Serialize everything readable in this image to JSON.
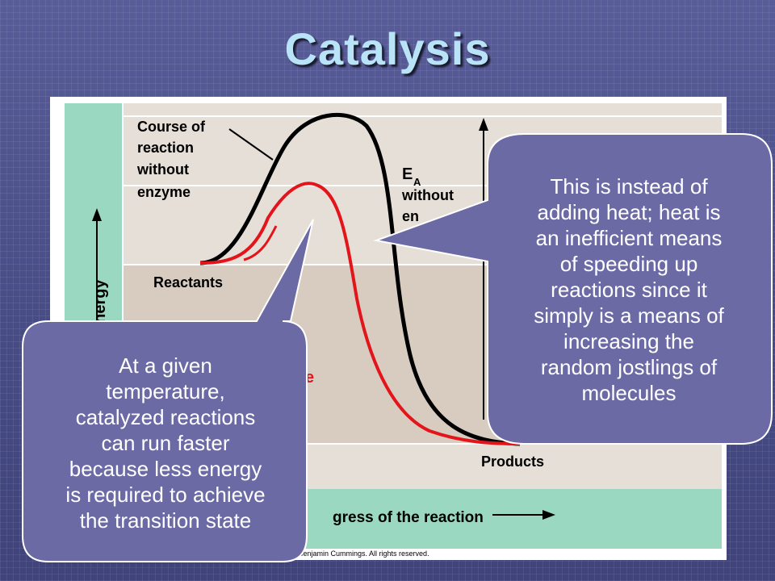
{
  "slide": {
    "title": "Catalysis"
  },
  "diagram": {
    "labels": {
      "course_without": [
        "Course of",
        "reaction",
        "without",
        "enzyme"
      ],
      "ea_without_main": "E",
      "ea_without_sub": "A",
      "ea_without_lines": [
        "without",
        "en"
      ],
      "reactants": "Reactants",
      "products": "Products",
      "y_axis": "energy",
      "x_axis": "gress of the reaction",
      "red_fragment": "e",
      "copyright": "n Benjamin Cummings. All rights reserved."
    },
    "colors": {
      "curve_without": "#000000",
      "curve_with": "#e4141b",
      "panel_green": "#9ad8c1",
      "panel_light": "#e6dfd8",
      "panel_mid": "#d8ccc1"
    }
  },
  "callouts": {
    "left": {
      "lines": [
        "At a given",
        "temperature,",
        "catalyzed reactions",
        "can run faster",
        "because less energy",
        "is required to achieve",
        "the transition state"
      ]
    },
    "right": {
      "lines": [
        "This is instead of",
        "adding heat; heat is",
        "an inefficient means",
        "of speeding up",
        "reactions since it",
        "simply is a means of",
        "increasing the",
        "random jostlings of",
        "molecules"
      ]
    },
    "fill": "#6b6aa5",
    "border": "#ffffff"
  }
}
